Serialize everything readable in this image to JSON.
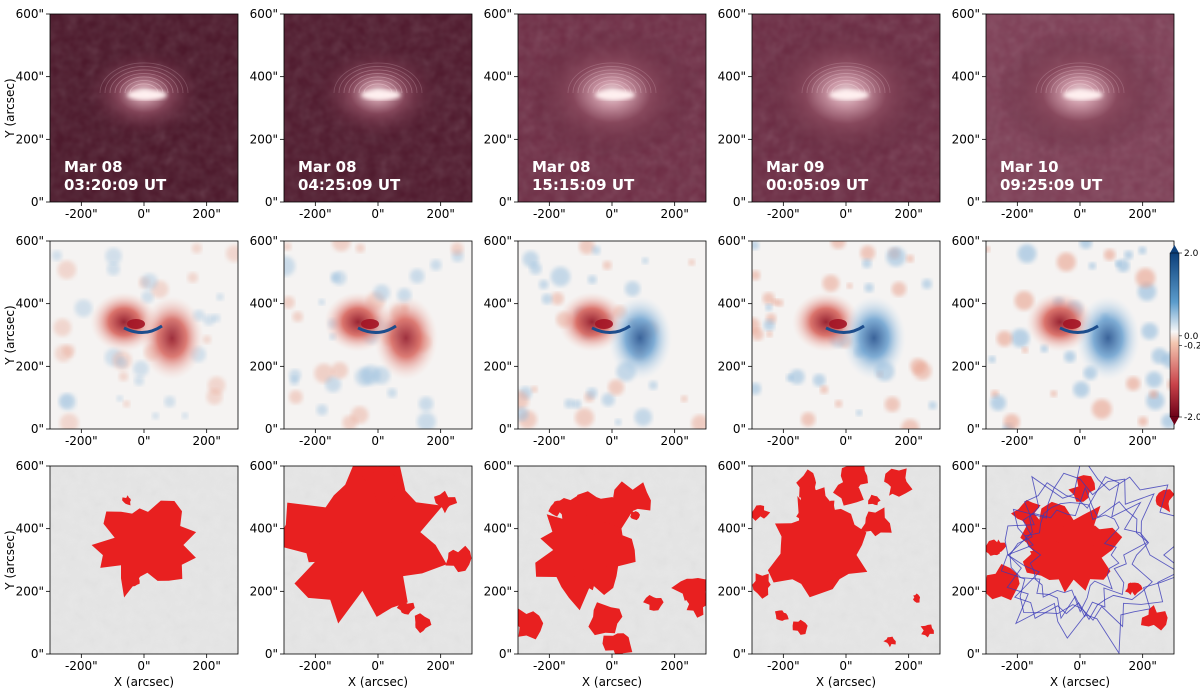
{
  "figure": {
    "x_axis_label": "X (arcsec)",
    "y_axis_label": "Y (arcsec)",
    "x_tick_labels": [
      "-200\"",
      "0\"",
      "200\""
    ],
    "y_tick_labels": [
      "0\"",
      "200\"",
      "400\"",
      "600\""
    ],
    "colorbar": {
      "labels": [
        "2.0",
        "0.0",
        "-0.2",
        "-2.0"
      ]
    },
    "colors": {
      "euv_dark": "#3c0f1e",
      "euv_bright": "#fff0f0",
      "ratio_red": "#a31425",
      "ratio_blue": "#1d4d8c",
      "mask_red": "#e82020",
      "contour_blue": "#3a3ab8",
      "mask_background": "#e6e6e6"
    },
    "panels_row1": [
      {
        "date": "Mar 08",
        "time": "03:20:09 UT"
      },
      {
        "date": "Mar 08",
        "time": "04:25:09 UT"
      },
      {
        "date": "Mar 08",
        "time": "15:15:09 UT"
      },
      {
        "date": "Mar 09",
        "time": "00:05:09 UT"
      },
      {
        "date": "Mar 10",
        "time": "09:25:09 UT"
      }
    ]
  },
  "chart_data": {
    "type": "heatmap",
    "rows": [
      {
        "row": 1,
        "kind": "EUV intensity image",
        "panels": 5
      },
      {
        "row": 2,
        "kind": "diverging ratio map",
        "panels": 5,
        "colorbar_ticks": [
          2.0,
          0.0,
          -0.2,
          -2.0
        ]
      },
      {
        "row": 3,
        "kind": "dimming mask",
        "panels": 5
      }
    ],
    "xlim": [
      -300,
      300
    ],
    "ylim": [
      0,
      600
    ],
    "x_ticks": [
      -200,
      0,
      200
    ],
    "y_ticks": [
      0,
      200,
      400,
      600
    ],
    "xlabel": "X (arcsec)",
    "ylabel": "Y (arcsec)"
  }
}
